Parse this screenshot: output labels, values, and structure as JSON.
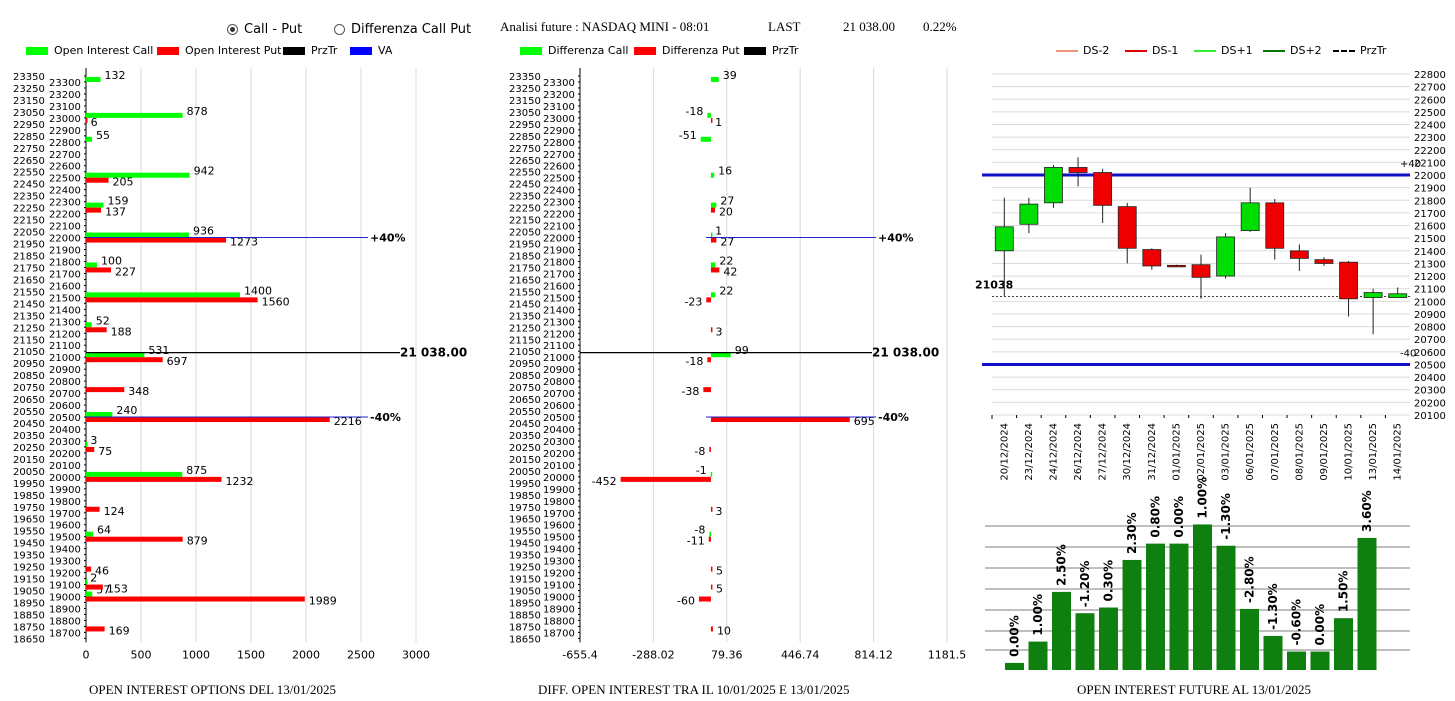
{
  "controls": {
    "radio_call_put": "Call - Put",
    "radio_diff": "Differenza Call Put",
    "selected": "call_put"
  },
  "header": {
    "title": "Analisi future : NASDAQ MINI - 08:01",
    "last_label": "LAST",
    "last_value": "21 038.00",
    "last_change": "0.22%"
  },
  "legends": {
    "chart1": [
      {
        "label": "Open Interest Call",
        "color": "#00ff00"
      },
      {
        "label": "Open Interest Put",
        "color": "#ff0000"
      },
      {
        "label": "PrzTr",
        "color": "#000000"
      },
      {
        "label": "VA",
        "color": "#0000ff"
      }
    ],
    "chart2": [
      {
        "label": "Differenza Call",
        "color": "#00ff00"
      },
      {
        "label": "Differenza Put",
        "color": "#ff0000"
      },
      {
        "label": "PrzTr",
        "color": "#000000"
      }
    ],
    "chart3": [
      {
        "label": "DS-2",
        "color": "#e9967a",
        "style": "solid"
      },
      {
        "label": "DS-1",
        "color": "#dd0000",
        "style": "solid"
      },
      {
        "label": "DS+1",
        "color": "#33ee33",
        "style": "solid"
      },
      {
        "label": "DS+2",
        "color": "#007700",
        "style": "solid"
      },
      {
        "label": "PrzTr",
        "color": "#000000",
        "style": "dashed"
      }
    ]
  },
  "footers": {
    "chart1": "OPEN INTEREST OPTIONS DEL 13/01/2025",
    "chart2": "DIFF. OPEN INTEREST TRA IL 10/01/2025 E 13/01/2025",
    "chart4": "OPEN INTEREST FUTURE AL 13/01/2025"
  },
  "chart_data": [
    {
      "type": "bar",
      "orientation": "horizontal",
      "strikes_from": 18650,
      "strikes_to": 23350,
      "strike_step": 50,
      "xlim": [
        0,
        3000
      ],
      "xticks": [
        0,
        500,
        1000,
        1500,
        2000,
        2500,
        3000
      ],
      "series": [
        {
          "name": "Open Interest Call",
          "color": "#00ff00",
          "points": [
            [
              23300,
              132
            ],
            [
              23000,
              878
            ],
            [
              22800,
              55
            ],
            [
              22500,
              942
            ],
            [
              22250,
              159
            ],
            [
              22000,
              936
            ],
            [
              21750,
              100
            ],
            [
              21500,
              1400
            ],
            [
              21250,
              52
            ],
            [
              21000,
              531
            ],
            [
              20500,
              240
            ],
            [
              20250,
              3
            ],
            [
              20000,
              875
            ],
            [
              19500,
              64
            ],
            [
              19100,
              2
            ],
            [
              19000,
              57
            ]
          ]
        },
        {
          "name": "Open Interest Put",
          "color": "#ff0000",
          "points": [
            [
              23000,
              6
            ],
            [
              22500,
              205
            ],
            [
              22250,
              137
            ],
            [
              22000,
              1273
            ],
            [
              21750,
              227
            ],
            [
              21500,
              1560
            ],
            [
              21250,
              188
            ],
            [
              21000,
              697
            ],
            [
              20750,
              348
            ],
            [
              20500,
              2216
            ],
            [
              20250,
              75
            ],
            [
              20000,
              1232
            ],
            [
              19750,
              124
            ],
            [
              19500,
              879
            ],
            [
              19250,
              46
            ],
            [
              19100,
              153
            ],
            [
              19000,
              1989
            ],
            [
              18750,
              169
            ]
          ]
        }
      ],
      "last_price": 21038,
      "last_label": "21 038.00",
      "bands": [
        {
          "strike": 22000,
          "label": "+40%"
        },
        {
          "strike": 20500,
          "label": "-40%"
        }
      ]
    },
    {
      "type": "bar",
      "orientation": "horizontal",
      "strikes_from": 18650,
      "strikes_to": 23350,
      "strike_step": 50,
      "xlim": [
        -655.4,
        1181.5
      ],
      "xticks": [
        "-655.4",
        "-288.02",
        "79.36",
        "446.74",
        "814.12",
        "1181.5"
      ],
      "series": [
        {
          "name": "Differenza Call",
          "color": "#00ff00",
          "points": [
            [
              23300,
              39
            ],
            [
              23000,
              -18
            ],
            [
              22800,
              -51
            ],
            [
              22500,
              16
            ],
            [
              22250,
              27
            ],
            [
              22000,
              1
            ],
            [
              21750,
              22
            ],
            [
              21500,
              22
            ],
            [
              21000,
              99
            ],
            [
              20000,
              -1
            ],
            [
              19500,
              -8
            ]
          ]
        },
        {
          "name": "Differenza Put",
          "color": "#ff0000",
          "points": [
            [
              23000,
              1
            ],
            [
              22250,
              20
            ],
            [
              22000,
              27
            ],
            [
              21750,
              42
            ],
            [
              21500,
              -23
            ],
            [
              21250,
              3
            ],
            [
              21000,
              -18
            ],
            [
              20750,
              -38
            ],
            [
              20500,
              695
            ],
            [
              20250,
              -8
            ],
            [
              20000,
              -452
            ],
            [
              19750,
              3
            ],
            [
              19500,
              -11
            ],
            [
              19250,
              5
            ],
            [
              19100,
              5
            ],
            [
              19000,
              -60
            ],
            [
              18750,
              10
            ]
          ]
        }
      ],
      "last_price": 21038,
      "last_label": "21 038.00",
      "bands": [
        {
          "strike": 22000,
          "label": "+40%"
        },
        {
          "strike": 20500,
          "label": "-40%"
        }
      ]
    },
    {
      "type": "candlestick",
      "ylim": [
        20100,
        22800
      ],
      "yticks": [
        20100,
        20200,
        20300,
        20400,
        20500,
        20600,
        20700,
        20800,
        20900,
        21000,
        21100,
        21200,
        21300,
        21400,
        21500,
        21600,
        21700,
        21800,
        21900,
        22000,
        22100,
        22200,
        22300,
        22400,
        22500,
        22600,
        22700,
        22800
      ],
      "dates": [
        "20/12/2024",
        "23/12/2024",
        "24/12/2024",
        "26/12/2024",
        "27/12/2024",
        "30/12/2024",
        "31/12/2024",
        "01/01/2025",
        "02/01/2025",
        "03/01/2025",
        "06/01/2025",
        "07/01/2025",
        "08/01/2025",
        "09/01/2025",
        "10/01/2025",
        "13/01/2025",
        "14/01/2025"
      ],
      "ohlc": [
        [
          21400,
          21820,
          21040,
          21590
        ],
        [
          21610,
          21820,
          21540,
          21770
        ],
        [
          21780,
          22080,
          21740,
          22060
        ],
        [
          22060,
          22140,
          21910,
          22020
        ],
        [
          22020,
          22050,
          21620,
          21760
        ],
        [
          21750,
          21780,
          21300,
          21420
        ],
        [
          21410,
          21420,
          21250,
          21280
        ],
        [
          21285,
          21290,
          21275,
          21280
        ],
        [
          21290,
          21370,
          21020,
          21190
        ],
        [
          21200,
          21540,
          21180,
          21510
        ],
        [
          21560,
          21900,
          21550,
          21780
        ],
        [
          21780,
          21810,
          21330,
          21420
        ],
        [
          21400,
          21450,
          21240,
          21340
        ],
        [
          21330,
          21350,
          21280,
          21300
        ],
        [
          21310,
          21320,
          20880,
          21020
        ],
        [
          21030,
          21100,
          20740,
          21070
        ],
        [
          21030,
          21110,
          21030,
          21060
        ]
      ],
      "last_price": 21038,
      "last_label": "21038",
      "bands": [
        {
          "value": 22000,
          "label": "+40"
        },
        {
          "value": 20500,
          "label": "-40"
        }
      ]
    },
    {
      "type": "bar",
      "values": [
        0.0,
        1.0,
        2.5,
        -1.2,
        0.3,
        2.3,
        0.8,
        0.0,
        1.0,
        -1.3,
        -2.8,
        -1.3,
        -0.6,
        0.0,
        1.5,
        3.6
      ],
      "labels": [
        "0.00%",
        "1.00%",
        "2.50%",
        "-1.20%",
        "0.30%",
        "2.30%",
        "0.80%",
        "0.00%",
        "1.00%",
        "-1.30%",
        "-2.80%",
        "-1.30%",
        "-0.60%",
        "0.00%",
        "1.50%",
        "3.60%"
      ],
      "heights": [
        1,
        4,
        11,
        8,
        8.8,
        15.5,
        17.8,
        17.8,
        20.5,
        17.5,
        8.6,
        4.8,
        2.6,
        2.6,
        7.3,
        18.6
      ]
    }
  ]
}
